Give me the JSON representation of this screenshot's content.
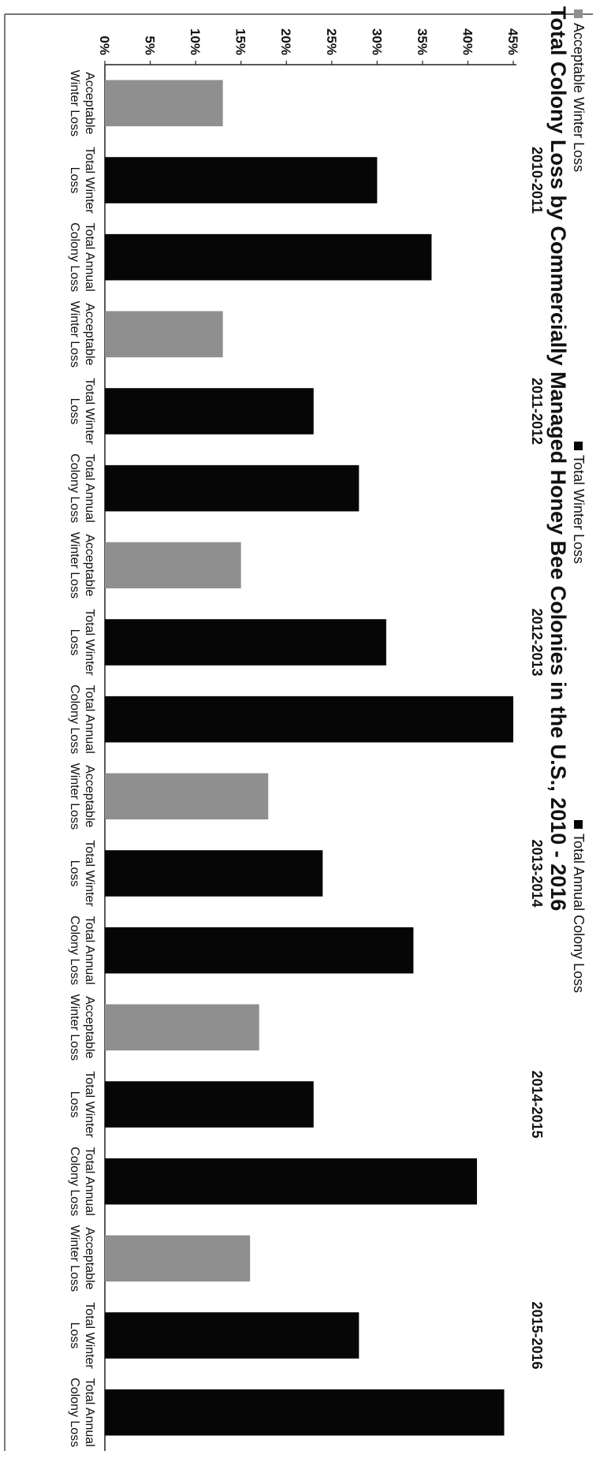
{
  "chart_data": {
    "type": "bar",
    "title": "Total Colony Loss by Commercially Managed Honey Bee Colonies in the U.S., 2010 - 2016",
    "ylim": [
      0,
      45
    ],
    "y_ticks": [
      "0%",
      "5%",
      "10%",
      "15%",
      "20%",
      "25%",
      "30%",
      "35%",
      "40%",
      "45%"
    ],
    "grid": false,
    "legend_position": "top",
    "legend": [
      "Acceptable Winter Loss",
      "Total Winter Loss",
      "Total Annual Colony Loss"
    ],
    "series_colors": [
      "#8f8f8f",
      "#060606",
      "#060606"
    ],
    "categories": [
      "Acceptable Winter Loss",
      "Total Winter Loss",
      "Total Annual Colony Loss",
      "Acceptable Winter Loss",
      "Total Winter Loss",
      "Total Annual Colony Loss",
      "Acceptable Winter Loss",
      "Total Winter Loss",
      "Total Annual Colony Loss",
      "Acceptable Winter Loss",
      "Total Winter Loss",
      "Total Annual Colony Loss",
      "Acceptable Winter Loss",
      "Total Winter Loss",
      "Total Annual Colony Loss",
      "Acceptable Winter Loss",
      "Total Winter Loss",
      "Total Annual Colony Loss"
    ],
    "periods": [
      "2010-2011",
      "2011-2012",
      "2012-2013",
      "2013-2014",
      "2014-2015",
      "2015-2016"
    ],
    "values": [
      13,
      30,
      36,
      13,
      23,
      28,
      15,
      31,
      45,
      18,
      24,
      34,
      17,
      23,
      41,
      16,
      28,
      44
    ],
    "series_index": [
      0,
      1,
      2,
      0,
      1,
      2,
      0,
      1,
      2,
      0,
      1,
      2,
      0,
      1,
      2,
      0,
      1,
      2
    ]
  }
}
